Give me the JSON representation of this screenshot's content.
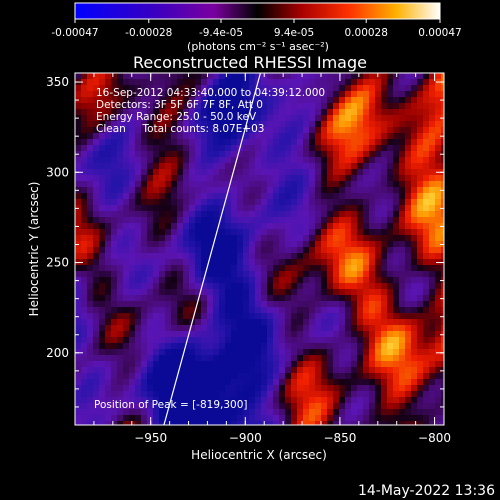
{
  "colorbar": {
    "tick_labels": [
      "-0.00047",
      "-0.00028",
      "-9.4e-05",
      "9.4e-05",
      "0.00028",
      "0.00047"
    ],
    "unit_label": "(photons cm⁻² s⁻¹ asec⁻²)",
    "range": [
      -0.00047,
      0.00047
    ]
  },
  "chart_data": {
    "type": "heatmap",
    "title": "Reconstructed RHESSI Image",
    "xlabel": "Heliocentric X (arcsec)",
    "ylabel": "Heliocentric Y (arcsec)",
    "xlim": [
      -990,
      -795
    ],
    "ylim": [
      160,
      355
    ],
    "x_ticks": [
      -950,
      -900,
      -850,
      -800
    ],
    "y_ticks": [
      200,
      250,
      300,
      350
    ],
    "x_tick_labels": [
      "−950",
      "−900",
      "−850",
      "−800"
    ],
    "y_tick_labels": [
      "200",
      "250",
      "300",
      "350"
    ],
    "limb_line": [
      [
        -943,
        160
      ],
      [
        -892,
        355
      ]
    ],
    "annotations": [
      "16-Sep-2012 04:33:40.000 to 04:39:12.000",
      "Detectors: 3F 5F 6F 7F 8F, Att 0",
      "Energy Range: 25.0 - 50.0 keV",
      "Clean     Total counts: 8.07E+03"
    ],
    "peak_label": "Position of Peak = [-819,300]",
    "peak": [
      -819,
      300
    ],
    "colormap": "blue-purple-red-yellow-white"
  },
  "footer": {
    "timestamp": "14-May-2022 13:36"
  }
}
